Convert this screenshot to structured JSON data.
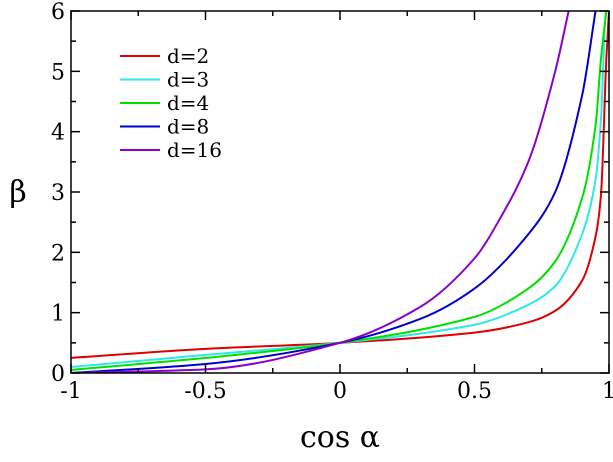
{
  "chart_data": {
    "type": "line",
    "title": "",
    "xlabel": "cos α",
    "ylabel": "β",
    "xlim": [
      -1,
      1
    ],
    "ylim": [
      0,
      6
    ],
    "x_ticks": [
      -1,
      -0.5,
      0,
      0.5,
      1
    ],
    "x_tick_labels": [
      "-1",
      "-0.5",
      "0",
      "0.5",
      "1"
    ],
    "y_ticks": [
      0,
      1,
      2,
      3,
      4,
      5,
      6
    ],
    "y_tick_labels": [
      "0",
      "1",
      "2",
      "3",
      "4",
      "5",
      "6"
    ],
    "grid": false,
    "legend_position": "top-left",
    "series": [
      {
        "name": "d=2",
        "color": "#e00000",
        "x": [
          -1,
          -0.5,
          0,
          0.5,
          0.7,
          0.8,
          0.9,
          0.95,
          0.97,
          0.99,
          1
        ],
        "y": [
          0.25,
          0.4,
          0.5,
          0.67,
          0.84,
          1.03,
          1.53,
          2.26,
          2.94,
          5.2,
          6
        ]
      },
      {
        "name": "d=3",
        "color": "#30e8e8",
        "x": [
          -1,
          -0.5,
          0,
          0.5,
          0.7,
          0.8,
          0.9,
          0.95,
          0.97,
          0.99,
          1
        ],
        "y": [
          0.1,
          0.3,
          0.5,
          0.8,
          1.13,
          1.44,
          2.3,
          3.2,
          4.2,
          6.0,
          6
        ]
      },
      {
        "name": "d=4",
        "color": "#00e000",
        "x": [
          -1,
          -0.5,
          0,
          0.5,
          0.7,
          0.8,
          0.9,
          0.95,
          0.97,
          0.99
        ],
        "y": [
          0.05,
          0.25,
          0.5,
          0.93,
          1.4,
          1.85,
          2.9,
          4.1,
          5.2,
          6.0
        ]
      },
      {
        "name": "d=8",
        "color": "#0000cc",
        "x": [
          -1,
          -0.5,
          0,
          0.3,
          0.5,
          0.7,
          0.8,
          0.9,
          0.95
        ],
        "y": [
          0.0,
          0.15,
          0.5,
          0.9,
          1.4,
          2.3,
          3.0,
          4.6,
          6.0
        ]
      },
      {
        "name": "d=16",
        "color": "#8a00cc",
        "x": [
          -1,
          -0.5,
          0,
          0.3,
          0.5,
          0.6,
          0.7,
          0.8,
          0.85
        ],
        "y": [
          0.0,
          0.06,
          0.5,
          1.1,
          1.9,
          2.6,
          3.5,
          5.0,
          6.0
        ]
      }
    ]
  }
}
